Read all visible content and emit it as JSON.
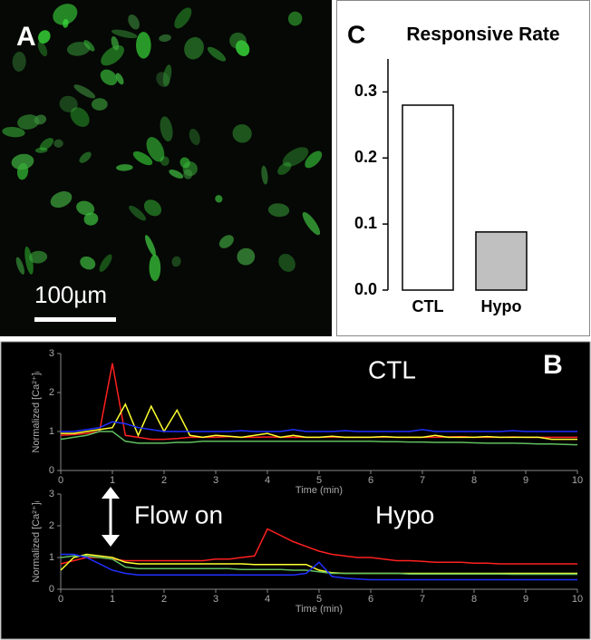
{
  "image_panel": {
    "panel_label": "A",
    "scale_bar": "100µm"
  },
  "chart_data": [
    {
      "type": "bar",
      "panel_label": "C",
      "title": "Responsive Rate",
      "categories": [
        "CTL",
        "Hypo"
      ],
      "values": [
        0.28,
        0.088
      ],
      "colors": [
        "#ffffff",
        "#c0c0c0"
      ],
      "ylim": [
        0,
        0.35
      ],
      "yticks": [
        {
          "value": 0,
          "label": "0.0"
        },
        0.1,
        0.2,
        0.3
      ]
    },
    {
      "type": "line",
      "panel_label": "B",
      "title": "CTL",
      "x_label": "Time (min)",
      "y_label": "Normalized [Ca²⁺]ᵢ",
      "xlim": [
        0,
        10
      ],
      "xticks": [
        0,
        1,
        2,
        3,
        4,
        5,
        6,
        7,
        8,
        9,
        10
      ],
      "ylim": [
        0,
        3
      ],
      "yticks": [
        0,
        1,
        2,
        3
      ],
      "x": [
        0,
        0.25,
        0.5,
        0.75,
        1,
        1.25,
        1.5,
        1.75,
        2,
        2.25,
        2.5,
        2.75,
        3,
        3.25,
        3.5,
        3.75,
        4,
        4.25,
        4.5,
        4.75,
        5,
        5.25,
        5.5,
        5.75,
        6,
        6.25,
        6.5,
        6.75,
        7,
        7.25,
        7.5,
        7.75,
        8,
        8.25,
        8.5,
        8.75,
        9,
        9.25,
        9.5,
        9.75,
        10
      ],
      "series": [
        {
          "color": "#ff2020",
          "values": [
            0.9,
            0.92,
            0.95,
            1.0,
            2.75,
            0.9,
            0.85,
            0.8,
            0.8,
            0.82,
            0.85,
            0.85,
            0.85,
            0.87,
            0.85,
            0.85,
            0.86,
            0.85,
            0.85,
            0.85,
            0.85,
            0.86,
            0.85,
            0.85,
            0.85,
            0.86,
            0.85,
            0.85,
            0.85,
            0.85,
            0.86,
            0.87,
            0.85,
            0.85,
            0.85,
            0.86,
            0.85,
            0.85,
            0.85,
            0.85,
            0.85
          ]
        },
        {
          "color": "#ffff30",
          "values": [
            0.95,
            0.95,
            1.0,
            1.05,
            1.1,
            1.7,
            0.9,
            1.65,
            1.0,
            1.55,
            0.9,
            0.85,
            0.9,
            0.88,
            0.85,
            0.9,
            0.95,
            0.85,
            0.9,
            0.85,
            0.85,
            0.88,
            0.85,
            0.85,
            0.85,
            0.87,
            0.85,
            0.85,
            0.85,
            0.9,
            0.85,
            0.85,
            0.85,
            0.87,
            0.85,
            0.85,
            0.85,
            0.85,
            0.8,
            0.8,
            0.8
          ]
        },
        {
          "color": "#2030ff",
          "values": [
            1.0,
            1.0,
            1.05,
            1.1,
            1.25,
            1.2,
            1.1,
            1.05,
            1.0,
            1.0,
            1.0,
            1.0,
            1.0,
            1.0,
            1.02,
            1.0,
            1.0,
            1.0,
            1.05,
            1.0,
            1.0,
            1.0,
            1.02,
            1.0,
            1.0,
            1.0,
            1.0,
            1.0,
            1.05,
            1.0,
            1.0,
            1.0,
            1.0,
            1.0,
            1.0,
            1.02,
            1.0,
            1.0,
            1.0,
            1.0,
            1.0
          ]
        },
        {
          "color": "#60c060",
          "values": [
            0.8,
            0.85,
            0.9,
            1.0,
            1.0,
            0.75,
            0.7,
            0.7,
            0.7,
            0.72,
            0.72,
            0.75,
            0.75,
            0.75,
            0.75,
            0.75,
            0.75,
            0.75,
            0.75,
            0.75,
            0.75,
            0.75,
            0.75,
            0.75,
            0.75,
            0.74,
            0.74,
            0.73,
            0.73,
            0.72,
            0.72,
            0.72,
            0.71,
            0.7,
            0.7,
            0.7,
            0.69,
            0.68,
            0.68,
            0.67,
            0.66
          ]
        }
      ]
    },
    {
      "type": "line",
      "title": "Hypo",
      "annotation": "Flow on",
      "x_label": "Time (min)",
      "y_label": "Normalized [Ca²⁺]ᵢ",
      "xlim": [
        0,
        10
      ],
      "xticks": [
        0,
        1,
        2,
        3,
        4,
        5,
        6,
        7,
        8,
        9,
        10
      ],
      "ylim": [
        0,
        3
      ],
      "yticks": [
        0,
        1,
        2,
        3
      ],
      "x": [
        0,
        0.25,
        0.5,
        0.75,
        1,
        1.25,
        1.5,
        1.75,
        2,
        2.25,
        2.5,
        2.75,
        3,
        3.25,
        3.5,
        3.75,
        4,
        4.25,
        4.5,
        4.75,
        5,
        5.25,
        5.5,
        5.75,
        6,
        6.25,
        6.5,
        6.75,
        7,
        7.25,
        7.5,
        7.75,
        8,
        8.25,
        8.5,
        8.75,
        9,
        9.25,
        9.5,
        9.75,
        10
      ],
      "series": [
        {
          "color": "#ff2020",
          "values": [
            0.8,
            0.9,
            1.0,
            1.0,
            0.95,
            0.9,
            0.9,
            0.9,
            0.9,
            0.9,
            0.9,
            0.9,
            0.95,
            0.95,
            1.0,
            1.05,
            1.9,
            1.7,
            1.5,
            1.35,
            1.2,
            1.1,
            1.05,
            1.0,
            1.0,
            0.95,
            0.9,
            0.9,
            0.88,
            0.85,
            0.85,
            0.85,
            0.82,
            0.82,
            0.8,
            0.8,
            0.8,
            0.8,
            0.8,
            0.8,
            0.8
          ]
        },
        {
          "color": "#ffff30",
          "values": [
            0.6,
            1.0,
            1.1,
            1.05,
            1.0,
            0.85,
            0.8,
            0.8,
            0.8,
            0.8,
            0.8,
            0.8,
            0.8,
            0.8,
            0.8,
            0.78,
            0.78,
            0.78,
            0.78,
            0.78,
            0.6,
            0.52,
            0.5,
            0.5,
            0.5,
            0.5,
            0.5,
            0.5,
            0.5,
            0.5,
            0.5,
            0.5,
            0.5,
            0.5,
            0.5,
            0.5,
            0.5,
            0.5,
            0.5,
            0.5,
            0.5
          ]
        },
        {
          "color": "#60c060",
          "values": [
            1.0,
            1.05,
            1.05,
            1.0,
            0.95,
            0.7,
            0.65,
            0.65,
            0.65,
            0.65,
            0.65,
            0.65,
            0.65,
            0.65,
            0.62,
            0.62,
            0.62,
            0.62,
            0.6,
            0.6,
            0.55,
            0.5,
            0.5,
            0.5,
            0.5,
            0.5,
            0.5,
            0.48,
            0.48,
            0.48,
            0.48,
            0.48,
            0.48,
            0.48,
            0.48,
            0.47,
            0.47,
            0.47,
            0.47,
            0.47,
            0.47
          ]
        },
        {
          "color": "#2030ff",
          "values": [
            1.1,
            1.1,
            1.0,
            0.8,
            0.6,
            0.5,
            0.45,
            0.45,
            0.45,
            0.45,
            0.45,
            0.45,
            0.45,
            0.45,
            0.45,
            0.45,
            0.45,
            0.45,
            0.45,
            0.5,
            0.85,
            0.4,
            0.35,
            0.32,
            0.3,
            0.3,
            0.3,
            0.3,
            0.3,
            0.3,
            0.3,
            0.3,
            0.3,
            0.3,
            0.3,
            0.3,
            0.3,
            0.3,
            0.3,
            0.3,
            0.3
          ]
        }
      ]
    }
  ]
}
